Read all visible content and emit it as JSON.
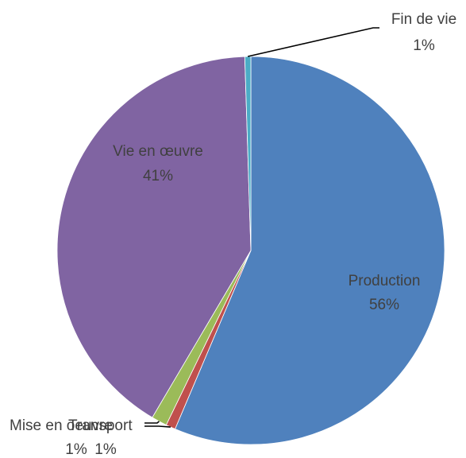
{
  "chart_data": {
    "type": "pie",
    "title": "",
    "slices": [
      {
        "label": "Production",
        "pct_label": "56%",
        "value": 56.4,
        "color": "#4f81bd"
      },
      {
        "label": "Transport",
        "pct_label": "1%",
        "value": 0.8,
        "color": "#c0504d"
      },
      {
        "label": "Mise en oeuvre",
        "pct_label": "1%",
        "value": 1.3,
        "color": "#9bbb59"
      },
      {
        "label": "Vie en œuvre",
        "pct_label": "41%",
        "value": 41.0,
        "color": "#8064a2"
      },
      {
        "label": "Fin de vie",
        "pct_label": "1%",
        "value": 0.5,
        "color": "#4bacc6"
      }
    ],
    "legend": "none"
  }
}
